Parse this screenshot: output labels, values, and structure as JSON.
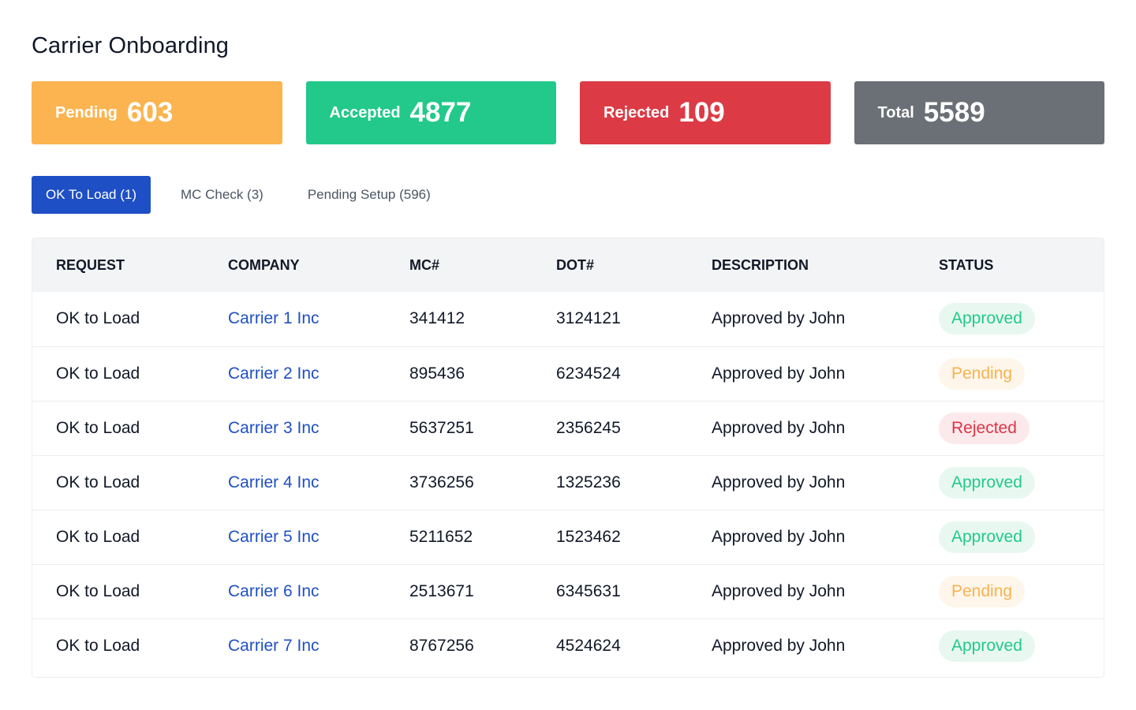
{
  "page": {
    "title": "Carrier Onboarding"
  },
  "colors": {
    "pending": "#fbb44f",
    "accepted": "#22c98a",
    "rejected": "#dc3b46",
    "total": "#6b7077",
    "primary": "#1f4fc4"
  },
  "stats": [
    {
      "label": "Pending",
      "value": "603"
    },
    {
      "label": "Accepted",
      "value": "4877"
    },
    {
      "label": "Rejected",
      "value": "109"
    },
    {
      "label": "Total",
      "value": "5589"
    }
  ],
  "tabs": [
    {
      "label": "OK To Load (1)",
      "active": true
    },
    {
      "label": "MC Check (3)",
      "active": false
    },
    {
      "label": "Pending Setup (596)",
      "active": false
    }
  ],
  "table": {
    "headers": [
      "REQUEST",
      "COMPANY",
      "MC#",
      "DOT#",
      "DESCRIPTION",
      "STATUS"
    ],
    "rows": [
      {
        "request": "OK to Load",
        "company": "Carrier 1 Inc",
        "mc": "341412",
        "dot": "3124121",
        "description": "Approved by John",
        "status": "Approved"
      },
      {
        "request": "OK to Load",
        "company": "Carrier 2 Inc",
        "mc": "895436",
        "dot": "6234524",
        "description": "Approved by John",
        "status": "Pending"
      },
      {
        "request": "OK to Load",
        "company": "Carrier 3 Inc",
        "mc": "5637251",
        "dot": "2356245",
        "description": "Approved by John",
        "status": "Rejected"
      },
      {
        "request": "OK to Load",
        "company": "Carrier 4 Inc",
        "mc": "3736256",
        "dot": "1325236",
        "description": "Approved by John",
        "status": "Approved"
      },
      {
        "request": "OK to Load",
        "company": "Carrier 5 Inc",
        "mc": "5211652",
        "dot": "1523462",
        "description": "Approved by John",
        "status": "Approved"
      },
      {
        "request": "OK to Load",
        "company": "Carrier 6 Inc",
        "mc": "2513671",
        "dot": "6345631",
        "description": "Approved by John",
        "status": "Pending"
      },
      {
        "request": "OK to Load",
        "company": "Carrier 7 Inc",
        "mc": "8767256",
        "dot": "4524624",
        "description": "Approved by John",
        "status": "Approved"
      }
    ]
  }
}
